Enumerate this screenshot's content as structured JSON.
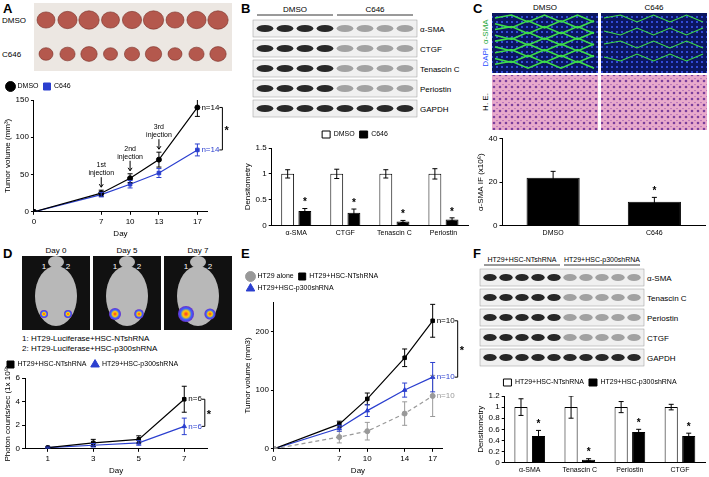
{
  "panels": [
    {
      "label": "A",
      "image": {
        "rows": [
          "DMSO",
          "C646"
        ]
      }
    },
    {
      "label": "B",
      "image": {
        "groups": [
          "DMSO",
          "C646"
        ],
        "rows": [
          "α-SMA",
          "CTGF",
          "Tenascin C",
          "Periostin",
          "GAPDH"
        ]
      }
    },
    {
      "label": "C",
      "image": {
        "columns": [
          "DMSO",
          "C646"
        ],
        "stain_labels": [
          "DAPI",
          "α-SMA"
        ],
        "row_labels": [
          "H. E."
        ]
      }
    },
    {
      "label": "D",
      "image": {
        "days": [
          "Day 0",
          "Day 5",
          "Day 7"
        ],
        "mouse_labels": [
          "1",
          "2"
        ],
        "key": [
          "1: HT29-Luciferase+HSC-NTshRNA",
          "2: HT29-Luciferase+HSC-p300shRNA"
        ]
      }
    },
    {
      "label": "E"
    },
    {
      "label": "F",
      "image": {
        "groups": [
          "HT29+HSC-NTshRNA",
          "HT29+HSC-p300shRNA"
        ],
        "rows": [
          "α-SMA",
          "Tenascin C",
          "Periostin",
          "CTGF",
          "GAPDH"
        ]
      }
    }
  ],
  "chart_data": [
    {
      "type": "line",
      "x_label": "Day",
      "y_label": "Tumor volume (mm³)",
      "x": [
        0,
        7,
        10,
        13,
        17
      ],
      "xlim": [
        0,
        18
      ],
      "xticks": [
        0,
        7,
        10,
        13,
        17
      ],
      "ylim": [
        0,
        150
      ],
      "yticks": [
        0,
        50,
        100,
        150
      ],
      "legend": "top-left",
      "annotations": [
        {
          "text": "1st injection",
          "x": 7
        },
        {
          "text": "2nd injection",
          "x": 10
        },
        {
          "text": "3rd injection",
          "x": 13
        }
      ],
      "significance": {
        "text": "*",
        "between": [
          "DMSO",
          "C646"
        ]
      },
      "series": [
        {
          "name": "DMSO",
          "color": "#000000",
          "marker": "circle",
          "line_style": "solid",
          "values": [
            0,
            25,
            45,
            70,
            140
          ],
          "errors": [
            null,
            4,
            6,
            10,
            12
          ],
          "n_label": "n=14"
        },
        {
          "name": "C646",
          "color": "#2b3fcf",
          "marker": "rect",
          "line_style": "solid",
          "values": [
            0,
            23,
            37,
            52,
            83
          ],
          "errors": [
            null,
            3,
            5,
            6,
            8
          ],
          "n_label": "n=14"
        }
      ]
    },
    {
      "type": "bar",
      "y_label": "Densitometry",
      "categories": [
        "α-SMA",
        "CTGF",
        "Tenascin C",
        "Periostin"
      ],
      "ylim": [
        0,
        1.5
      ],
      "yticks": [
        0,
        0.5,
        1,
        1.5
      ],
      "legend": "top",
      "series": [
        {
          "name": "DMSO",
          "color": "#ffffff",
          "values": [
            1,
            1,
            1,
            1
          ],
          "errors": [
            0.08,
            0.09,
            0.08,
            0.1
          ]
        },
        {
          "name": "C646",
          "color": "#000000",
          "values": [
            0.28,
            0.25,
            0.08,
            0.12
          ],
          "errors": [
            0.05,
            0.07,
            0.02,
            0.03
          ],
          "significance": [
            "*",
            "*",
            "*",
            "*"
          ]
        }
      ]
    },
    {
      "type": "bar",
      "y_label": "α-SMA IF (x10⁶)",
      "categories": [
        "DMSO",
        "C646"
      ],
      "ylim": [
        0,
        40
      ],
      "yticks": [
        0,
        20,
        40
      ],
      "series": [
        {
          "color": "#000000",
          "values": [
            22,
            11
          ],
          "errors": [
            3,
            2
          ],
          "significance": [
            null,
            "*"
          ]
        }
      ]
    },
    {
      "type": "line",
      "x_label": "Day",
      "y_label": "Photon counts/sec (1x 10⁹)",
      "x": [
        1,
        3,
        5,
        7
      ],
      "xlim": [
        0,
        8
      ],
      "xticks": [
        1,
        3,
        5,
        7
      ],
      "ylim": [
        0,
        6
      ],
      "yticks": [
        0,
        2,
        4,
        6
      ],
      "legend": "top-left",
      "significance": {
        "text": "*",
        "between": [
          "HT29+HSC-NTshRNA",
          "HT29+HSC-p300shRNA"
        ]
      },
      "series": [
        {
          "name": "HT29+HSC-NTshRNA",
          "color": "#000000",
          "marker": "rect",
          "line_style": "solid",
          "values": [
            0.1,
            0.5,
            0.8,
            4.2
          ],
          "errors": [
            0.05,
            0.3,
            0.3,
            1.1
          ],
          "n_label": "n=6"
        },
        {
          "name": "HT29+HSC-p300shRNA",
          "color": "#2b3fcf",
          "marker": "triangle",
          "line_style": "solid",
          "values": [
            0.1,
            0.3,
            0.5,
            1.9
          ],
          "errors": [
            0.05,
            0.15,
            0.2,
            0.7
          ],
          "n_label": "n=6"
        }
      ]
    },
    {
      "type": "line",
      "x_label": "Day",
      "y_label": "Tumor volume (mm3)",
      "x": [
        0,
        7,
        10,
        14,
        17
      ],
      "xlim": [
        0,
        18
      ],
      "xticks": [
        0,
        7,
        10,
        14,
        17
      ],
      "ylim": [
        0,
        250
      ],
      "yticks": [
        0,
        100,
        200
      ],
      "legend": "top-left",
      "significance": {
        "text": "*",
        "between": [
          "HT29+HSC-NTshRNA",
          "HT29+HSC-p300shRNA"
        ]
      },
      "series": [
        {
          "name": "HT29 alone",
          "color": "#999999",
          "marker": "circle",
          "line_style": "dashed",
          "values": [
            0,
            20,
            30,
            60,
            90
          ],
          "errors": [
            null,
            10,
            15,
            20,
            35
          ],
          "n_label": "n=10"
        },
        {
          "name": "HT29+HSC-NTshRNA",
          "color": "#000000",
          "marker": "rect",
          "line_style": "solid",
          "values": [
            0,
            42,
            85,
            155,
            218
          ],
          "errors": [
            null,
            5,
            10,
            15,
            28
          ],
          "n_label": "n=10"
        },
        {
          "name": "HT29+HSC-p300shRNA",
          "color": "#2b3fcf",
          "marker": "triangle",
          "line_style": "solid",
          "values": [
            0,
            35,
            65,
            100,
            122
          ],
          "errors": [
            null,
            5,
            10,
            12,
            25
          ],
          "n_label": "n=10"
        }
      ]
    },
    {
      "type": "bar",
      "y_label": "Densitometry",
      "categories": [
        "α-SMA",
        "Tenascin C",
        "Periostin",
        "CTGF"
      ],
      "ylim": [
        0,
        1.2
      ],
      "yticks": [
        0,
        0.2,
        0.4,
        0.6,
        0.8,
        1,
        1.2
      ],
      "legend": "top",
      "series": [
        {
          "name": "HT29+HSC-NTshRNA",
          "color": "#ffffff",
          "values": [
            1,
            1,
            1,
            1
          ],
          "errors": [
            0.15,
            0.2,
            0.1,
            0.05
          ]
        },
        {
          "name": "HT29+HSC-p300shRNA",
          "color": "#000000",
          "values": [
            0.48,
            0.05,
            0.55,
            0.48
          ],
          "errors": [
            0.1,
            0.02,
            0.05,
            0.05
          ],
          "significance": [
            "*",
            "*",
            "*",
            "*"
          ]
        }
      ]
    }
  ]
}
